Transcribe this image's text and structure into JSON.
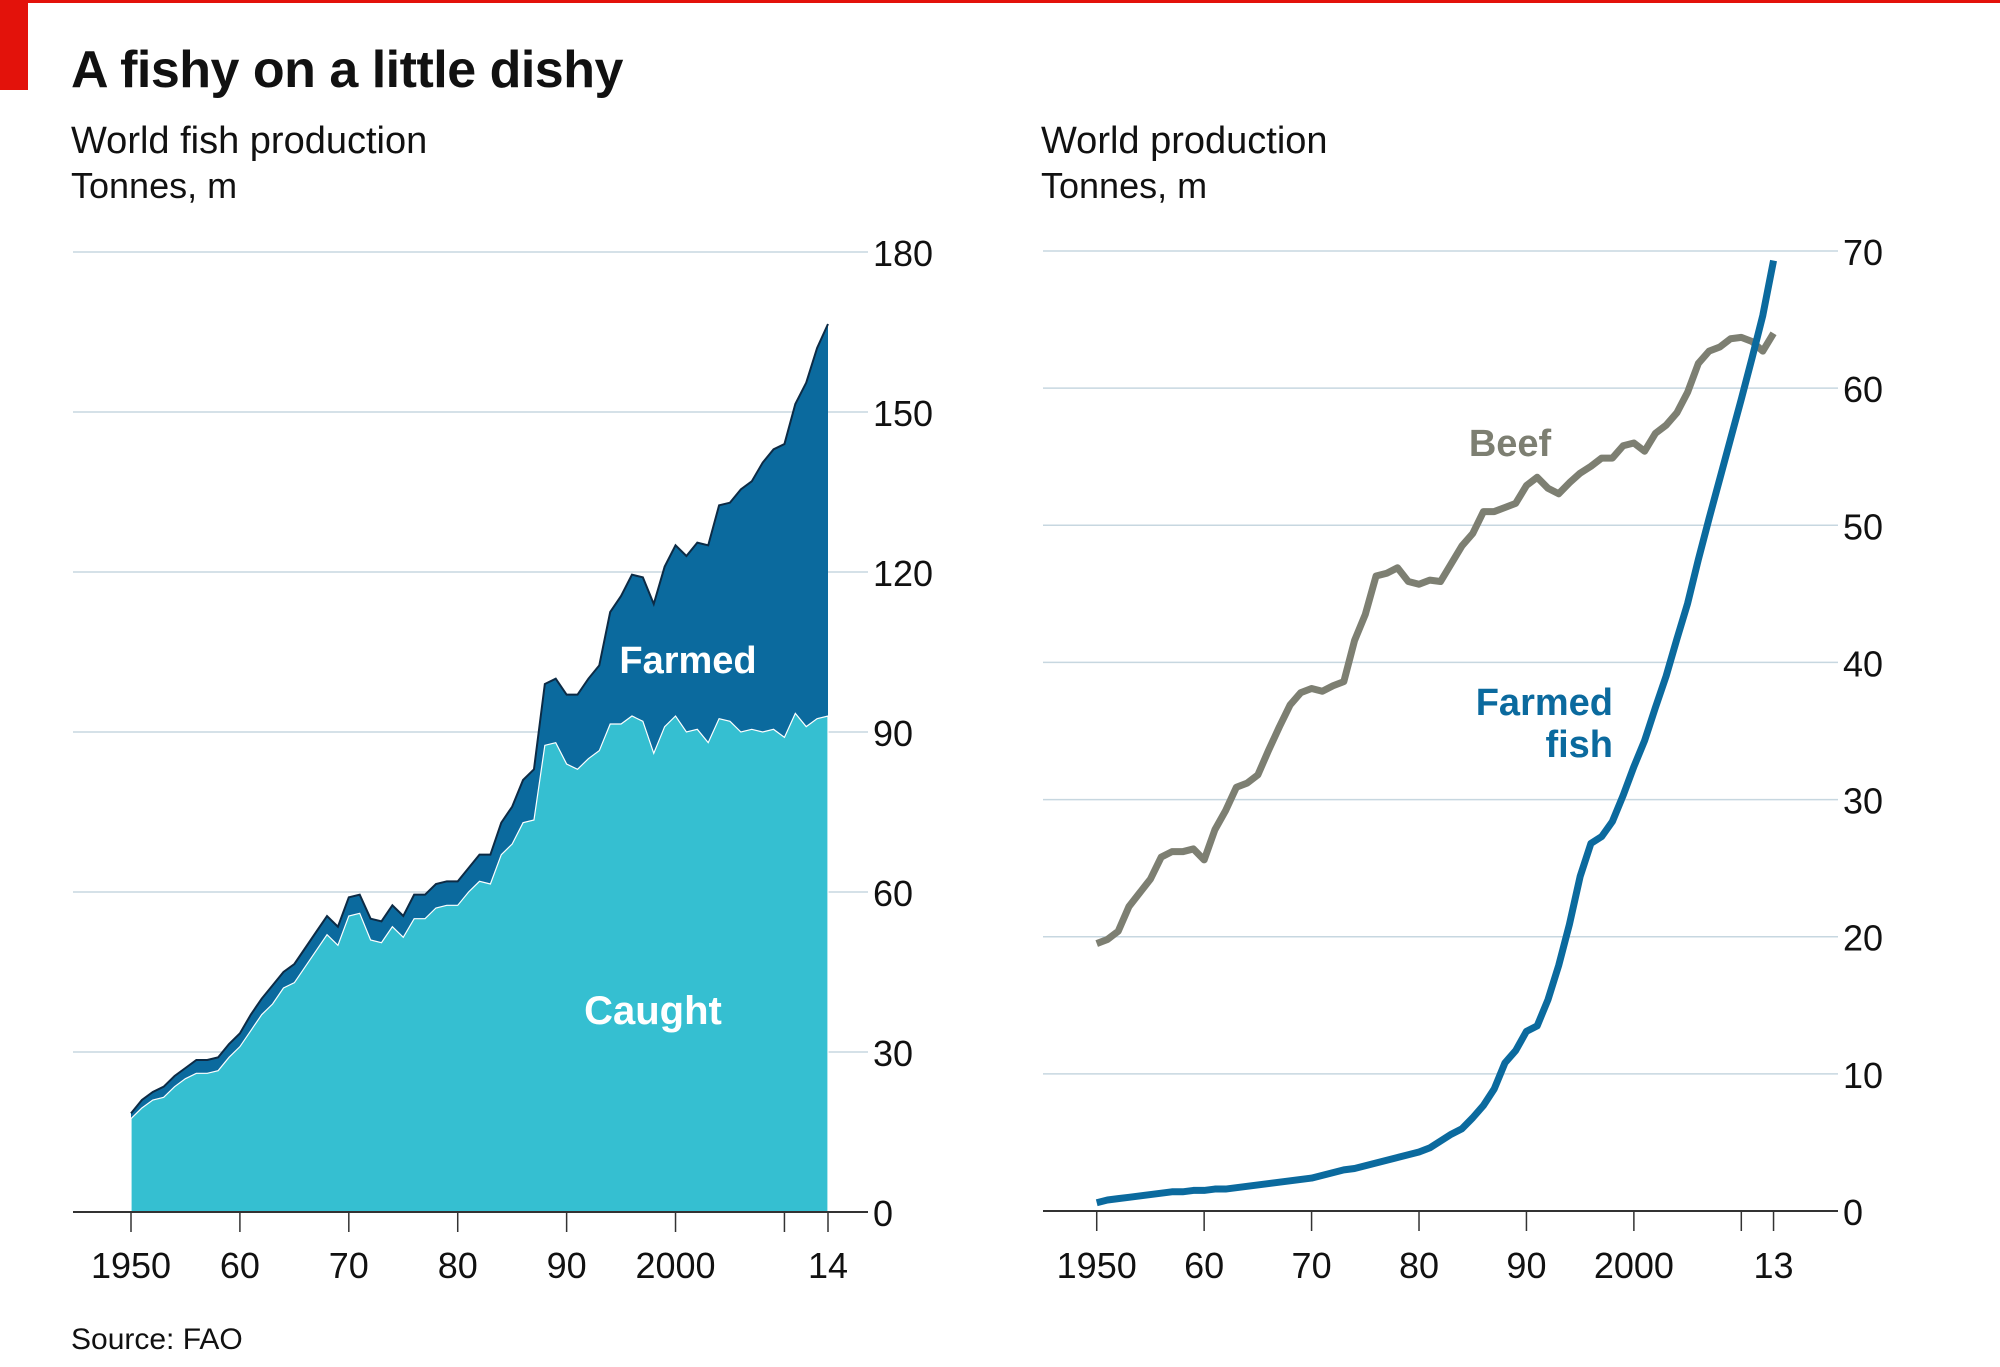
{
  "headline": "A fishy on a little dishy",
  "source": "Source: FAO",
  "colors": {
    "accent_red": "#e3120b",
    "farmed_area": "#0b6a9e",
    "caught_area": "#35bfd1",
    "beef_line": "#7d7f72",
    "fish_line": "#0b6a9e",
    "gridline": "#c7d7e0"
  },
  "left_chart": {
    "title": "World fish production",
    "subtitle": "Tonnes, m"
  },
  "right_chart": {
    "title": "World production",
    "subtitle": "Tonnes, m"
  },
  "chart_data": [
    {
      "type": "area",
      "title": "World fish production",
      "ylabel": "Tonnes, m",
      "ylim": [
        0,
        180
      ],
      "yticks": [
        0,
        30,
        60,
        90,
        120,
        150,
        180
      ],
      "xlim": [
        1950,
        2014
      ],
      "xticks": [
        {
          "value": 1950,
          "label": "1950"
        },
        {
          "value": 1960,
          "label": "60"
        },
        {
          "value": 1970,
          "label": "70"
        },
        {
          "value": 1980,
          "label": "80"
        },
        {
          "value": 1990,
          "label": "90"
        },
        {
          "value": 2000,
          "label": "2000"
        },
        {
          "value": 2014,
          "label": "14"
        }
      ],
      "grid": true,
      "x": [
        1950,
        1951,
        1952,
        1953,
        1954,
        1955,
        1956,
        1957,
        1958,
        1959,
        1960,
        1961,
        1962,
        1963,
        1964,
        1965,
        1966,
        1967,
        1968,
        1969,
        1970,
        1971,
        1972,
        1973,
        1974,
        1975,
        1976,
        1977,
        1978,
        1979,
        1980,
        1981,
        1982,
        1983,
        1984,
        1985,
        1986,
        1987,
        1988,
        1989,
        1990,
        1991,
        1992,
        1993,
        1994,
        1995,
        1996,
        1997,
        1998,
        1999,
        2000,
        2001,
        2002,
        2003,
        2004,
        2005,
        2006,
        2007,
        2008,
        2009,
        2010,
        2011,
        2012,
        2013,
        2014
      ],
      "series": [
        {
          "name": "Caught",
          "values": [
            17.5,
            19.5,
            21,
            21.5,
            23.5,
            25,
            26,
            26,
            26.5,
            29,
            31,
            34,
            37,
            39,
            42,
            43,
            46,
            49,
            52,
            50,
            55.5,
            56,
            51,
            50.5,
            53.5,
            51.5,
            55,
            55,
            57,
            57.5,
            57.5,
            60,
            62,
            61.5,
            67,
            69,
            73,
            73.5,
            87.5,
            88,
            84,
            83,
            85,
            86.5,
            91.5,
            91.5,
            93,
            92,
            86,
            91,
            93,
            90,
            90.5,
            88,
            92.5,
            92,
            90,
            90.5,
            90,
            90.5,
            89,
            93.5,
            91,
            92.5,
            93
          ]
        },
        {
          "name": "Farmed",
          "values": [
            1,
            1.5,
            1.5,
            2,
            2,
            2,
            2.5,
            2.5,
            2.5,
            2.5,
            2.5,
            3,
            3,
            3.5,
            3,
            3.5,
            3.5,
            3.5,
            3.5,
            3.5,
            3.5,
            3.5,
            4,
            4,
            4,
            4,
            4.5,
            4.5,
            4.5,
            4.5,
            4.5,
            4.5,
            5,
            5.5,
            6,
            7,
            8,
            9.5,
            11.5,
            12,
            13,
            14,
            15,
            16,
            21,
            24,
            26.5,
            27,
            28,
            30,
            32,
            33,
            35,
            37,
            40,
            41,
            45.5,
            46.5,
            50.5,
            52.5,
            55,
            58,
            64.5,
            69.5,
            73.5
          ]
        }
      ]
    },
    {
      "type": "line",
      "title": "World production",
      "ylabel": "Tonnes, m",
      "ylim": [
        0,
        70
      ],
      "yticks": [
        0,
        10,
        20,
        30,
        40,
        50,
        60,
        70
      ],
      "xlim": [
        1945,
        2019
      ],
      "xticks": [
        {
          "value": 1950,
          "label": "1950"
        },
        {
          "value": 1960,
          "label": "60"
        },
        {
          "value": 1970,
          "label": "70"
        },
        {
          "value": 1980,
          "label": "80"
        },
        {
          "value": 1990,
          "label": "90"
        },
        {
          "value": 2000,
          "label": "2000"
        },
        {
          "value": 2013,
          "label": "13"
        }
      ],
      "grid": true,
      "x": [
        1950,
        1951,
        1952,
        1953,
        1954,
        1955,
        1956,
        1957,
        1958,
        1959,
        1960,
        1961,
        1962,
        1963,
        1964,
        1965,
        1966,
        1967,
        1968,
        1969,
        1970,
        1971,
        1972,
        1973,
        1974,
        1975,
        1976,
        1977,
        1978,
        1979,
        1980,
        1981,
        1982,
        1983,
        1984,
        1985,
        1986,
        1987,
        1988,
        1989,
        1990,
        1991,
        1992,
        1993,
        1994,
        1995,
        1996,
        1997,
        1998,
        1999,
        2000,
        2001,
        2002,
        2003,
        2004,
        2005,
        2006,
        2007,
        2008,
        2009,
        2010,
        2011,
        2012,
        2013
      ],
      "series": [
        {
          "name": "Beef",
          "values": [
            19.5,
            19.8,
            20.4,
            22.2,
            23.2,
            24.2,
            25.8,
            26.2,
            26.2,
            26.4,
            25.6,
            27.8,
            29.2,
            30.9,
            31.2,
            31.8,
            33.6,
            35.3,
            36.9,
            37.8,
            38.1,
            37.9,
            38.3,
            38.6,
            41.6,
            43.5,
            46.3,
            46.5,
            46.9,
            45.9,
            45.7,
            46.0,
            45.9,
            47.2,
            48.5,
            49.4,
            51.0,
            51.0,
            51.3,
            51.6,
            52.9,
            53.5,
            52.7,
            52.3,
            53.1,
            53.8,
            54.3,
            54.9,
            54.9,
            55.8,
            56.0,
            55.4,
            56.7,
            57.3,
            58.2,
            59.7,
            61.8,
            62.7,
            63.0,
            63.6,
            63.7,
            63.4,
            62.7,
            64.0
          ]
        },
        {
          "name": "Farmed fish",
          "values": [
            0.6,
            0.8,
            0.9,
            1.0,
            1.1,
            1.2,
            1.3,
            1.4,
            1.4,
            1.5,
            1.5,
            1.6,
            1.6,
            1.7,
            1.8,
            1.9,
            2.0,
            2.1,
            2.2,
            2.3,
            2.4,
            2.6,
            2.8,
            3.0,
            3.1,
            3.3,
            3.5,
            3.7,
            3.9,
            4.1,
            4.3,
            4.6,
            5.1,
            5.6,
            6.0,
            6.8,
            7.7,
            8.9,
            10.8,
            11.7,
            13.1,
            13.5,
            15.4,
            17.9,
            20.9,
            24.4,
            26.8,
            27.3,
            28.4,
            30.3,
            32.4,
            34.3,
            36.7,
            39.0,
            41.7,
            44.3,
            47.5,
            50.5,
            53.4,
            56.3,
            59.2,
            62.2,
            65.3,
            69.3
          ]
        }
      ]
    }
  ],
  "annotations": {
    "farmed": "Farmed",
    "caught": "Caught",
    "beef": "Beef",
    "farmed_fish_1": "Farmed",
    "farmed_fish_2": "fish"
  }
}
